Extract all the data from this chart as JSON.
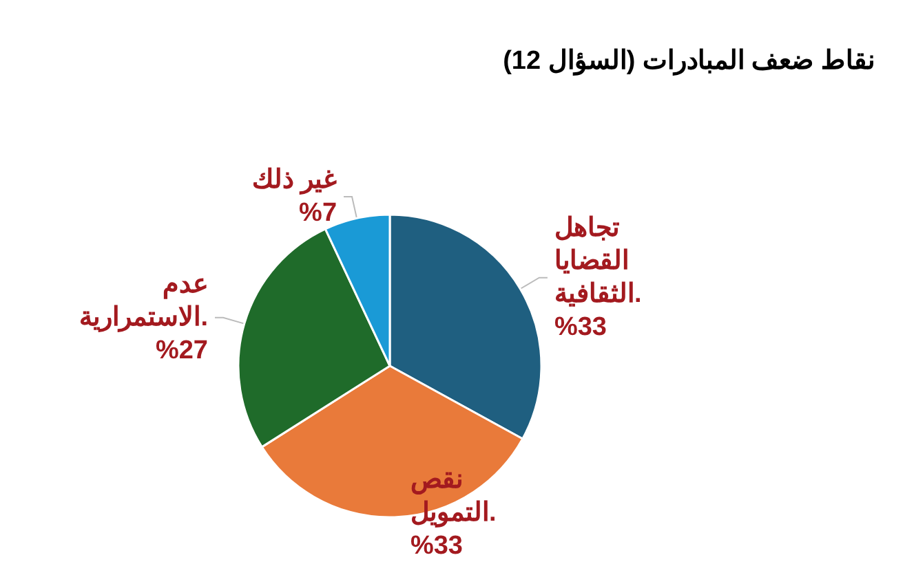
{
  "chart_data": {
    "type": "pie",
    "title": "نقاط ضعف المبادرات (السؤال 12)",
    "categories": [
      "تجاهل\nالقضايا\nالثقافية.",
      "نقص\nالتمويل.",
      "عدم\nالاستمرارية.",
      "غير ذلك"
    ],
    "values": [
      33,
      33,
      27,
      7
    ],
    "value_labels": [
      "%33",
      "%33",
      "%27",
      "%7"
    ],
    "colors": [
      "#1f5f80",
      "#e97a3a",
      "#1f6b2a",
      "#1a9ad6"
    ],
    "legend": false
  }
}
